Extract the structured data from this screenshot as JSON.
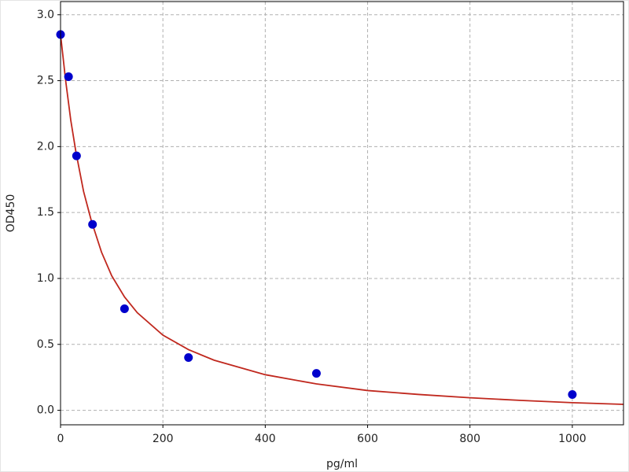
{
  "chart_data": {
    "type": "scatter",
    "xlabel": "pg/ml",
    "ylabel": "OD450",
    "xlim": [
      0,
      1100
    ],
    "ylim": [
      -0.11,
      3.1
    ],
    "xticks": [
      0,
      200,
      400,
      600,
      800,
      1000
    ],
    "yticks": [
      {
        "value": 0,
        "label": "0.0"
      },
      0.5,
      {
        "value": 1,
        "label": "1.0"
      },
      1.5,
      {
        "value": 2,
        "label": "2.0"
      },
      2.5,
      {
        "value": 3,
        "label": "3.0"
      }
    ],
    "grid": true,
    "series": [
      {
        "type": "scatter",
        "color": "#0000cc",
        "x": [
          0,
          15.6,
          31.25,
          62.5,
          125,
          250,
          500,
          1000
        ],
        "values": [
          2.85,
          2.53,
          1.93,
          1.41,
          0.77,
          0.4,
          0.28,
          0.12
        ]
      },
      {
        "type": "line",
        "color": "#c0281e",
        "x": [
          0,
          10,
          20,
          30,
          45,
          60,
          80,
          100,
          125,
          150,
          200,
          250,
          300,
          400,
          500,
          600,
          700,
          800,
          900,
          1000,
          1100
        ],
        "values": [
          2.85,
          2.5,
          2.2,
          1.96,
          1.66,
          1.44,
          1.2,
          1.02,
          0.86,
          0.74,
          0.57,
          0.46,
          0.38,
          0.27,
          0.2,
          0.15,
          0.12,
          0.095,
          0.075,
          0.058,
          0.045
        ]
      }
    ]
  }
}
